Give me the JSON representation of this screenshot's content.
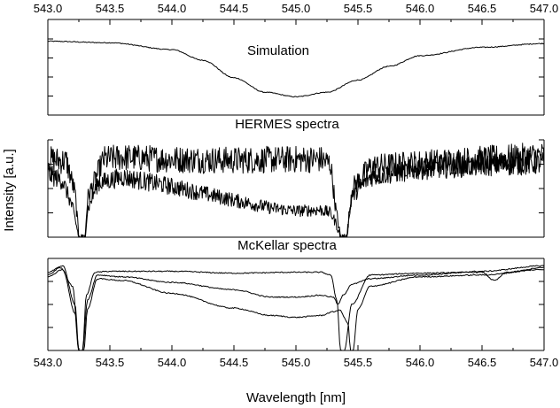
{
  "chart_data": {
    "type": "line",
    "xlabel": "Wavelength [nm]",
    "ylabel": "Intensity [a.u.]",
    "xlim": [
      543.0,
      547.0
    ],
    "x_ticks": [
      "543.0",
      "543.5",
      "544.0",
      "544.5",
      "545.0",
      "545.5",
      "546.0",
      "546.5",
      "547.0"
    ],
    "panels": [
      {
        "title": "Simulation",
        "ylim": [
          0,
          1
        ],
        "series": [
          {
            "kind": "smooth",
            "x": [
              543.0,
              543.5,
              544.0,
              544.25,
              544.5,
              544.75,
              545.0,
              545.25,
              545.5,
              545.75,
              546.0,
              546.5,
              547.0
            ],
            "y": [
              0.97,
              0.95,
              0.86,
              0.72,
              0.49,
              0.3,
              0.24,
              0.3,
              0.46,
              0.64,
              0.78,
              0.89,
              0.94
            ]
          }
        ]
      },
      {
        "title": "HERMES spectra",
        "ylim": [
          0,
          1
        ],
        "series": [
          {
            "kind": "noisy",
            "noise": 0.14,
            "x": [
              543.0,
              543.15,
              543.22,
              543.25,
              543.3,
              543.32,
              543.45,
              543.6,
              544.0,
              544.5,
              545.0,
              545.2,
              545.28,
              545.32,
              545.36,
              545.41,
              545.45,
              545.6,
              546.0,
              546.5,
              547.0
            ],
            "y": [
              0.8,
              0.78,
              0.45,
              0.0,
              0.0,
              0.4,
              0.8,
              0.82,
              0.8,
              0.79,
              0.8,
              0.8,
              0.75,
              0.3,
              0.0,
              0.0,
              0.5,
              0.72,
              0.76,
              0.8,
              0.84
            ]
          },
          {
            "kind": "noisy",
            "noise": 0.12,
            "x": [
              543.0,
              543.12,
              543.2,
              543.25,
              543.3,
              543.32,
              543.4,
              543.6,
              544.0,
              544.5,
              544.8,
              545.0,
              545.2,
              545.28,
              545.32,
              545.36,
              545.41,
              545.45,
              545.6,
              546.0,
              546.5,
              547.0
            ],
            "y": [
              0.65,
              0.58,
              0.3,
              0.0,
              0.0,
              0.28,
              0.55,
              0.62,
              0.52,
              0.38,
              0.3,
              0.27,
              0.28,
              0.25,
              0.15,
              0.0,
              0.0,
              0.42,
              0.62,
              0.7,
              0.74,
              0.76
            ]
          }
        ]
      },
      {
        "title": "McKellar spectra",
        "ylim": [
          0,
          1
        ],
        "series": [
          {
            "kind": "smooth",
            "x": [
              543.0,
              543.1,
              543.2,
              543.25,
              543.28,
              543.31,
              543.38,
              543.5,
              544.0,
              544.5,
              545.0,
              545.2,
              545.28,
              545.33,
              545.36,
              545.39,
              545.45,
              545.6,
              546.0,
              546.5,
              546.6,
              546.7,
              547.0
            ],
            "y": [
              0.82,
              0.9,
              0.7,
              0.0,
              0.0,
              0.6,
              0.85,
              0.86,
              0.86,
              0.84,
              0.85,
              0.85,
              0.82,
              0.55,
              0.0,
              0.0,
              0.5,
              0.82,
              0.84,
              0.85,
              0.76,
              0.85,
              0.9
            ]
          },
          {
            "kind": "smooth",
            "x": [
              543.0,
              543.12,
              543.22,
              543.25,
              543.28,
              543.32,
              543.4,
              543.6,
              544.0,
              544.5,
              544.8,
              545.0,
              545.2,
              545.3,
              545.34,
              545.38,
              545.45,
              545.6,
              546.0,
              546.5,
              547.0
            ],
            "y": [
              0.85,
              0.92,
              0.5,
              0.0,
              0.0,
              0.55,
              0.82,
              0.8,
              0.74,
              0.66,
              0.58,
              0.58,
              0.6,
              0.58,
              0.5,
              0.6,
              0.72,
              0.78,
              0.82,
              0.86,
              0.92
            ]
          },
          {
            "kind": "smooth",
            "x": [
              543.0,
              543.12,
              543.22,
              543.25,
              543.29,
              543.32,
              543.4,
              543.6,
              544.0,
              544.5,
              544.8,
              545.0,
              545.2,
              545.3,
              545.35,
              545.42,
              545.44,
              545.46,
              545.5,
              545.6,
              546.0,
              546.5,
              547.0
            ],
            "y": [
              0.8,
              0.88,
              0.4,
              0.0,
              0.0,
              0.45,
              0.78,
              0.76,
              0.62,
              0.46,
              0.38,
              0.36,
              0.38,
              0.42,
              0.44,
              0.3,
              0.0,
              0.0,
              0.45,
              0.7,
              0.8,
              0.82,
              0.88
            ]
          }
        ]
      }
    ]
  }
}
